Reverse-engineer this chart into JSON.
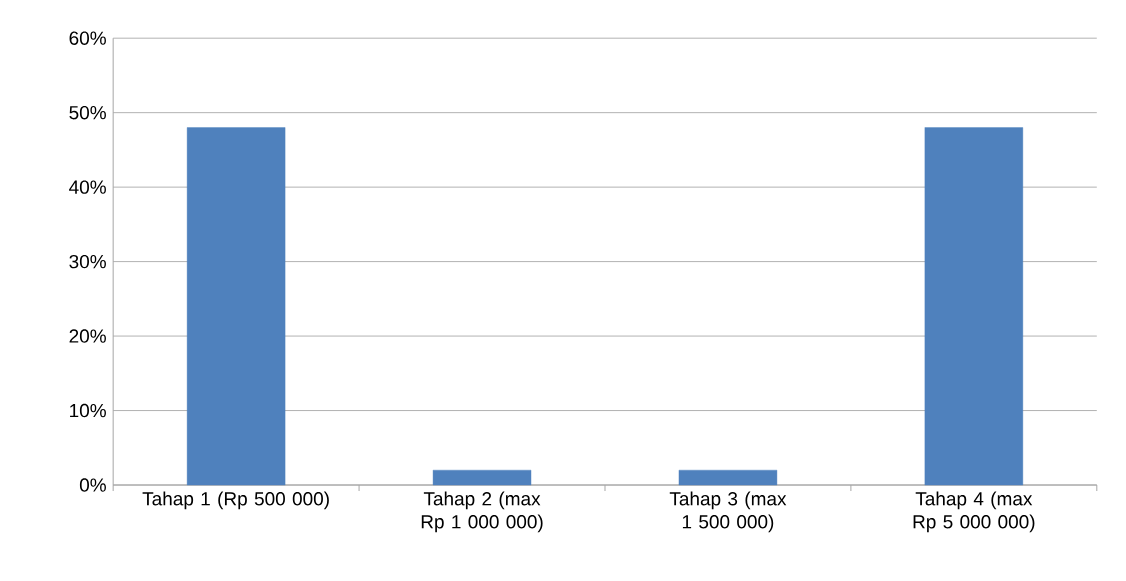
{
  "chart_data": {
    "type": "bar",
    "categories": [
      "Tahap 1 (Rp 500 000)",
      "Tahap 2 (max Rp 1 000 000)",
      "Tahap 3 (max 1 500 000)",
      "Tahap 4 (max Rp 5 000 000)"
    ],
    "values": [
      48,
      2,
      2,
      48
    ],
    "color": "#4f81bd",
    "ylim": [
      0,
      60
    ],
    "yticks": [
      {
        "value": 0,
        "label": "0%"
      },
      {
        "value": 10,
        "label": "10%"
      },
      {
        "value": 20,
        "label": "20%"
      },
      {
        "value": 30,
        "label": "30%"
      },
      {
        "value": 40,
        "label": "40%"
      },
      {
        "value": 50,
        "label": "50%"
      },
      {
        "value": 60,
        "label": "60%"
      }
    ],
    "grid": "y"
  }
}
